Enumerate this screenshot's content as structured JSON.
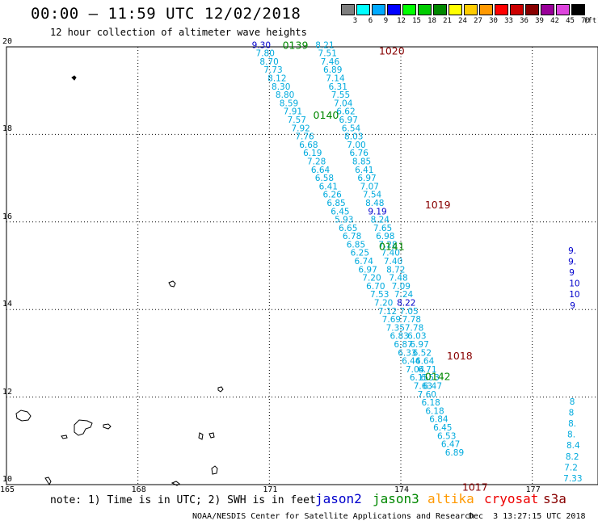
{
  "header": {
    "title": "00:00 – 11:59 UTC 12/02/2018",
    "subtitle": "12 hour collection of altimeter wave heights"
  },
  "legend": {
    "unit": "(ft)",
    "bins": [
      {
        "label": "3",
        "color": "#7f7f7f"
      },
      {
        "label": "6",
        "color": "#00ffff"
      },
      {
        "label": "9",
        "color": "#00aaff"
      },
      {
        "label": "12",
        "color": "#0000ff"
      },
      {
        "label": "15",
        "color": "#00ff00"
      },
      {
        "label": "18",
        "color": "#00cc00"
      },
      {
        "label": "21",
        "color": "#008800"
      },
      {
        "label": "24",
        "color": "#ffff00"
      },
      {
        "label": "27",
        "color": "#ffcc00"
      },
      {
        "label": "30",
        "color": "#ff9900"
      },
      {
        "label": "33",
        "color": "#ff0000"
      },
      {
        "label": "36",
        "color": "#cc0000"
      },
      {
        "label": "39",
        "color": "#880000"
      },
      {
        "label": "42",
        "color": "#990099"
      },
      {
        "label": "45",
        "color": "#dd44dd"
      },
      {
        "label": "70",
        "color": "#000000"
      }
    ]
  },
  "map": {
    "lon_ticks": [
      "165",
      "168",
      "171",
      "174",
      "177"
    ],
    "lat_ticks": [
      "20",
      "18",
      "16",
      "14",
      "12",
      "10"
    ],
    "colors": {
      "jason2": "#0000cc",
      "jason3": "#008800",
      "cryosat": "#880000",
      "low_value": "#00aadd"
    },
    "pass_labels": [
      {
        "text": "0139",
        "lon": 171.3,
        "lat": 20.05,
        "sat": "jason3"
      },
      {
        "text": "1020",
        "lon": 173.5,
        "lat": 19.92,
        "sat": "cryosat"
      },
      {
        "text": "0140",
        "lon": 172.0,
        "lat": 18.45,
        "sat": "jason3"
      },
      {
        "text": "1019",
        "lon": 174.55,
        "lat": 16.4,
        "sat": "cryosat"
      },
      {
        "text": "0141",
        "lon": 173.5,
        "lat": 15.45,
        "sat": "jason3"
      },
      {
        "text": "1018",
        "lon": 175.05,
        "lat": 12.95,
        "sat": "cryosat"
      },
      {
        "text": "0142",
        "lon": 174.55,
        "lat": 12.48,
        "sat": "jason3"
      },
      {
        "text": "1017",
        "lon": 175.4,
        "lat": 9.95,
        "sat": "cryosat"
      }
    ],
    "track_jason3": [
      {
        "lon": 170.6,
        "lat": 20.05,
        "v": "9.30",
        "sat": "jason2"
      },
      {
        "lon": 170.69,
        "lat": 19.86,
        "v": "7.80"
      },
      {
        "lon": 170.78,
        "lat": 19.67,
        "v": "8.70"
      },
      {
        "lon": 170.87,
        "lat": 19.48,
        "v": "7.73"
      },
      {
        "lon": 170.96,
        "lat": 19.29,
        "v": "8.12"
      },
      {
        "lon": 171.05,
        "lat": 19.1,
        "v": "8.30"
      },
      {
        "lon": 171.14,
        "lat": 18.91,
        "v": "8.80"
      },
      {
        "lon": 171.23,
        "lat": 18.72,
        "v": "8.59"
      },
      {
        "lon": 171.32,
        "lat": 18.53,
        "v": "7.91"
      },
      {
        "lon": 171.41,
        "lat": 18.34,
        "v": "7.57"
      },
      {
        "lon": 171.5,
        "lat": 18.15,
        "v": "7.92"
      },
      {
        "lon": 171.59,
        "lat": 17.96,
        "v": "7.76"
      },
      {
        "lon": 171.68,
        "lat": 17.77,
        "v": "6.68"
      },
      {
        "lon": 171.77,
        "lat": 17.58,
        "v": "6.19"
      },
      {
        "lon": 171.86,
        "lat": 17.39,
        "v": "7.28"
      },
      {
        "lon": 171.95,
        "lat": 17.2,
        "v": "6.64"
      },
      {
        "lon": 172.04,
        "lat": 17.01,
        "v": "6.58"
      },
      {
        "lon": 172.13,
        "lat": 16.82,
        "v": "6.41"
      },
      {
        "lon": 172.22,
        "lat": 16.63,
        "v": "6.26"
      },
      {
        "lon": 172.31,
        "lat": 16.44,
        "v": "6.85"
      },
      {
        "lon": 172.4,
        "lat": 16.25,
        "v": "6.45"
      },
      {
        "lon": 172.49,
        "lat": 16.06,
        "v": "5.93"
      },
      {
        "lon": 172.58,
        "lat": 15.87,
        "v": "6.65"
      },
      {
        "lon": 172.67,
        "lat": 15.68,
        "v": "6.78"
      },
      {
        "lon": 172.76,
        "lat": 15.49,
        "v": "6.85"
      },
      {
        "lon": 172.85,
        "lat": 15.3,
        "v": "6.25"
      },
      {
        "lon": 172.94,
        "lat": 15.11,
        "v": "6.74"
      },
      {
        "lon": 173.03,
        "lat": 14.92,
        "v": "6.97"
      },
      {
        "lon": 173.12,
        "lat": 14.73,
        "v": "7.20"
      },
      {
        "lon": 173.21,
        "lat": 14.54,
        "v": "6.70"
      },
      {
        "lon": 173.3,
        "lat": 14.35,
        "v": "7.53"
      },
      {
        "lon": 173.39,
        "lat": 14.16,
        "v": "7.20"
      },
      {
        "lon": 173.48,
        "lat": 13.97,
        "v": "7.12"
      },
      {
        "lon": 173.57,
        "lat": 13.78,
        "v": "7.69"
      },
      {
        "lon": 173.66,
        "lat": 13.59,
        "v": "7.35"
      },
      {
        "lon": 173.75,
        "lat": 13.4,
        "v": "6.83"
      },
      {
        "lon": 173.84,
        "lat": 13.21,
        "v": "6.87"
      },
      {
        "lon": 173.93,
        "lat": 13.02,
        "v": "6.33"
      },
      {
        "lon": 174.02,
        "lat": 12.83,
        "v": "6.44"
      },
      {
        "lon": 174.11,
        "lat": 12.64,
        "v": "7.04"
      },
      {
        "lon": 174.2,
        "lat": 12.45,
        "v": "6.15"
      },
      {
        "lon": 174.29,
        "lat": 12.26,
        "v": "7.63"
      },
      {
        "lon": 174.38,
        "lat": 12.07,
        "v": "7.60"
      },
      {
        "lon": 174.47,
        "lat": 11.88,
        "v": "6.18"
      },
      {
        "lon": 174.56,
        "lat": 11.69,
        "v": "6.18"
      },
      {
        "lon": 174.65,
        "lat": 11.5,
        "v": "6.84"
      },
      {
        "lon": 174.74,
        "lat": 11.31,
        "v": "6.45"
      },
      {
        "lon": 174.83,
        "lat": 11.12,
        "v": "6.53"
      },
      {
        "lon": 174.92,
        "lat": 10.93,
        "v": "6.47"
      },
      {
        "lon": 175.01,
        "lat": 10.74,
        "v": "6.89"
      }
    ],
    "track_cryosat": [
      {
        "lon": 172.05,
        "lat": 20.05,
        "v": "8.21"
      },
      {
        "lon": 172.11,
        "lat": 19.86,
        "v": "7.51"
      },
      {
        "lon": 172.17,
        "lat": 19.67,
        "v": "7.46"
      },
      {
        "lon": 172.23,
        "lat": 19.48,
        "v": "6.89"
      },
      {
        "lon": 172.29,
        "lat": 19.29,
        "v": "7.14"
      },
      {
        "lon": 172.35,
        "lat": 19.1,
        "v": "6.31"
      },
      {
        "lon": 172.41,
        "lat": 18.91,
        "v": "7.55"
      },
      {
        "lon": 172.47,
        "lat": 18.72,
        "v": "7.04"
      },
      {
        "lon": 172.53,
        "lat": 18.53,
        "v": "6.62"
      },
      {
        "lon": 172.59,
        "lat": 18.34,
        "v": "6.97"
      },
      {
        "lon": 172.65,
        "lat": 18.15,
        "v": "6.54"
      },
      {
        "lon": 172.71,
        "lat": 17.96,
        "v": "8.03"
      },
      {
        "lon": 172.77,
        "lat": 17.77,
        "v": "7.00"
      },
      {
        "lon": 172.83,
        "lat": 17.58,
        "v": "6.76"
      },
      {
        "lon": 172.89,
        "lat": 17.39,
        "v": "8.85"
      },
      {
        "lon": 172.95,
        "lat": 17.2,
        "v": "6.41"
      },
      {
        "lon": 173.01,
        "lat": 17.01,
        "v": "6.97"
      },
      {
        "lon": 173.07,
        "lat": 16.82,
        "v": "7.07"
      },
      {
        "lon": 173.13,
        "lat": 16.63,
        "v": "7.54"
      },
      {
        "lon": 173.19,
        "lat": 16.44,
        "v": "8.48"
      },
      {
        "lon": 173.25,
        "lat": 16.25,
        "v": "9.19",
        "sat": "jason2"
      },
      {
        "lon": 173.31,
        "lat": 16.06,
        "v": "8.24"
      },
      {
        "lon": 173.37,
        "lat": 15.87,
        "v": "7.65"
      },
      {
        "lon": 173.43,
        "lat": 15.68,
        "v": "6.98"
      },
      {
        "lon": 173.49,
        "lat": 15.49,
        "v": "7.28"
      },
      {
        "lon": 173.55,
        "lat": 15.3,
        "v": "7.40"
      },
      {
        "lon": 173.61,
        "lat": 15.11,
        "v": "7.40"
      },
      {
        "lon": 173.67,
        "lat": 14.92,
        "v": "8.72"
      },
      {
        "lon": 173.73,
        "lat": 14.73,
        "v": "7.48"
      },
      {
        "lon": 173.79,
        "lat": 14.54,
        "v": "7.09"
      },
      {
        "lon": 173.85,
        "lat": 14.35,
        "v": "7.24"
      },
      {
        "lon": 173.91,
        "lat": 14.16,
        "v": "8.22",
        "sat": "jason2"
      },
      {
        "lon": 173.97,
        "lat": 13.97,
        "v": "7.05"
      },
      {
        "lon": 174.03,
        "lat": 13.78,
        "v": "7.78"
      },
      {
        "lon": 174.09,
        "lat": 13.59,
        "v": "7.78"
      },
      {
        "lon": 174.15,
        "lat": 13.4,
        "v": "6.03"
      },
      {
        "lon": 174.21,
        "lat": 13.21,
        "v": "6.97"
      },
      {
        "lon": 174.27,
        "lat": 13.02,
        "v": "6.52"
      },
      {
        "lon": 174.33,
        "lat": 12.83,
        "v": "6.64"
      },
      {
        "lon": 174.39,
        "lat": 12.64,
        "v": "6.71"
      },
      {
        "lon": 174.45,
        "lat": 12.45,
        "v": "6.53"
      },
      {
        "lon": 174.51,
        "lat": 12.26,
        "v": "6.47"
      }
    ],
    "track_right_edge": [
      {
        "lon": 177.82,
        "lat": 15.35,
        "v": "9.",
        "sat": "jason2"
      },
      {
        "lon": 177.82,
        "lat": 15.1,
        "v": "9.",
        "sat": "jason2"
      },
      {
        "lon": 177.84,
        "lat": 14.85,
        "v": "9",
        "sat": "jason2"
      },
      {
        "lon": 177.84,
        "lat": 14.6,
        "v": "10",
        "sat": "jason2"
      },
      {
        "lon": 177.84,
        "lat": 14.35,
        "v": "10",
        "sat": "jason2"
      },
      {
        "lon": 177.86,
        "lat": 14.1,
        "v": "9",
        "sat": "jason2"
      },
      {
        "lon": 177.85,
        "lat": 11.9,
        "v": "8"
      },
      {
        "lon": 177.83,
        "lat": 11.65,
        "v": "8"
      },
      {
        "lon": 177.82,
        "lat": 11.4,
        "v": "8."
      },
      {
        "lon": 177.8,
        "lat": 11.15,
        "v": "8."
      },
      {
        "lon": 177.78,
        "lat": 10.9,
        "v": "8.4"
      },
      {
        "lon": 177.76,
        "lat": 10.65,
        "v": "8.2"
      },
      {
        "lon": 177.73,
        "lat": 10.4,
        "v": "7.2"
      },
      {
        "lon": 177.71,
        "lat": 10.15,
        "v": "7.33"
      }
    ]
  },
  "footer": {
    "note": "note: 1) Time is in UTC; 2) SWH is in feet",
    "satellites": [
      {
        "name": "jason2",
        "color": "#0000cc"
      },
      {
        "name": "jason3",
        "color": "#008800"
      },
      {
        "name": "altika",
        "color": "#ff9900"
      },
      {
        "name": "cryosat",
        "color": "#ee0000"
      },
      {
        "name": "s3a",
        "color": "#880000"
      }
    ],
    "credit": "NOAA/NESDIS Center for Satellite Applications and Research",
    "timestamp": "Dec  3 13:27:15 UTC 2018"
  }
}
